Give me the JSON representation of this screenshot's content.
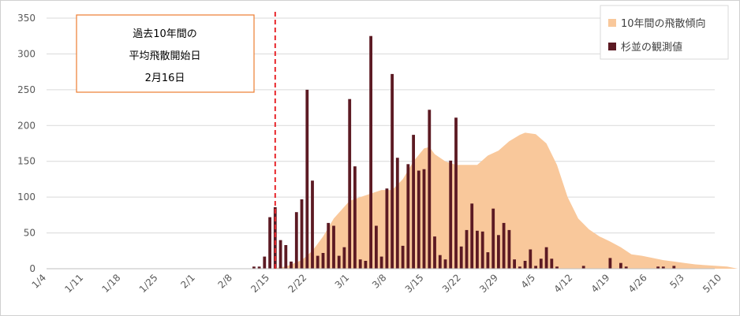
{
  "chart_data": {
    "type": "bar",
    "title": "",
    "xlabel": "",
    "ylabel": "",
    "ylim": [
      0,
      350
    ],
    "yticks": [
      0,
      50,
      100,
      150,
      200,
      250,
      300,
      350
    ],
    "grid": true,
    "legend_position": "top-right",
    "x_start_date": "1/4",
    "x_tick_labels": [
      "1/4",
      "1/11",
      "1/18",
      "1/25",
      "2/1",
      "2/8",
      "2/15",
      "2/22",
      "3/1",
      "3/8",
      "3/15",
      "3/22",
      "3/29",
      "4/5",
      "4/12",
      "4/19",
      "4/26",
      "5/3",
      "5/10"
    ],
    "series": [
      {
        "name": "10年間の飛散傾向",
        "type": "area",
        "color": "#f9c89b",
        "x": [
          "2/15",
          "2/18",
          "2/21",
          "2/23",
          "2/25",
          "2/27",
          "3/1",
          "3/3",
          "3/5",
          "3/7",
          "3/9",
          "3/11",
          "3/13",
          "3/15",
          "3/16",
          "3/17",
          "3/19",
          "3/21",
          "3/23",
          "3/25",
          "3/27",
          "3/29",
          "3/31",
          "4/2",
          "4/3",
          "4/5",
          "4/7",
          "4/9",
          "4/11",
          "4/13",
          "4/15",
          "4/17",
          "4/19",
          "4/21",
          "4/23",
          "4/25",
          "4/27",
          "4/29",
          "5/1",
          "5/3",
          "5/5",
          "5/7",
          "5/9",
          "5/11",
          "5/13"
        ],
        "values": [
          0,
          3,
          12,
          25,
          45,
          70,
          95,
          100,
          105,
          110,
          110,
          125,
          150,
          168,
          170,
          160,
          150,
          145,
          145,
          145,
          158,
          165,
          178,
          187,
          190,
          188,
          175,
          145,
          100,
          70,
          55,
          45,
          38,
          30,
          20,
          18,
          15,
          12,
          10,
          8,
          6,
          5,
          4,
          3,
          0
        ]
      },
      {
        "name": "杉並の観測値",
        "type": "bar",
        "color": "#5c1a23",
        "x": [
          "2/12",
          "2/13",
          "2/14",
          "2/15",
          "2/16",
          "2/17",
          "2/18",
          "2/19",
          "2/20",
          "2/21",
          "2/22",
          "2/23",
          "2/24",
          "2/25",
          "2/26",
          "2/27",
          "2/28",
          "2/29",
          "3/1",
          "3/2",
          "3/3",
          "3/4",
          "3/5",
          "3/6",
          "3/7",
          "3/8",
          "3/9",
          "3/10",
          "3/11",
          "3/12",
          "3/13",
          "3/14",
          "3/15",
          "3/16",
          "3/17",
          "3/18",
          "3/19",
          "3/20",
          "3/21",
          "3/22",
          "3/23",
          "3/24",
          "3/25",
          "3/26",
          "3/27",
          "3/28",
          "3/29",
          "3/30",
          "3/31",
          "4/1",
          "4/2",
          "4/3",
          "4/4",
          "4/5",
          "4/6",
          "4/7",
          "4/8",
          "4/9",
          "4/10",
          "4/11",
          "4/12",
          "4/13",
          "4/14",
          "4/15",
          "4/16",
          "4/17",
          "4/18",
          "4/19",
          "4/20",
          "4/21",
          "4/22",
          "4/23",
          "4/24",
          "4/25",
          "4/26",
          "4/27",
          "4/28",
          "4/29",
          "4/30",
          "5/1",
          "5/2"
        ],
        "values": [
          3,
          3,
          17,
          72,
          86,
          40,
          33,
          10,
          79,
          97,
          250,
          123,
          18,
          22,
          64,
          60,
          18,
          30,
          237,
          143,
          13,
          11,
          325,
          60,
          17,
          112,
          272,
          155,
          32,
          146,
          187,
          137,
          139,
          222,
          45,
          19,
          13,
          151,
          211,
          31,
          54,
          91,
          53,
          52,
          23,
          84,
          47,
          64,
          54,
          13,
          3,
          11,
          27,
          4,
          14,
          30,
          14,
          3,
          0,
          0,
          0,
          0,
          4,
          0,
          0,
          0,
          0,
          15,
          0,
          8,
          3,
          0,
          0,
          0,
          0,
          0,
          3,
          3,
          0,
          4,
          0
        ]
      }
    ],
    "reference_line": {
      "x": "2/16",
      "style": "dashed",
      "color": "#e8262b"
    },
    "annotation": {
      "lines": [
        "過去10年間の",
        "平均飛散開始日",
        "2月16日"
      ],
      "border_color": "#ed7d31"
    }
  }
}
